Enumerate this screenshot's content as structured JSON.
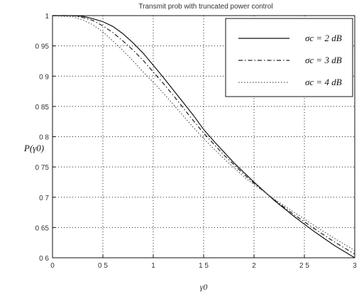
{
  "chart_data": {
    "type": "line",
    "title": "Transmit prob with truncated power control",
    "xlabel": "γ0",
    "ylabel": "P(γ0)",
    "xlim": [
      0,
      3
    ],
    "ylim": [
      0.6,
      1
    ],
    "xticks": [
      0,
      0.5,
      1,
      1.5,
      2,
      2.5,
      3
    ],
    "xtick_labels": [
      "0",
      "0 5",
      "1",
      "1 5",
      "2",
      "2 5",
      "3"
    ],
    "yticks": [
      0.6,
      0.65,
      0.7,
      0.75,
      0.8,
      0.85,
      0.9,
      0.95,
      1
    ],
    "ytick_labels": [
      "0 6",
      "0 65",
      "0 7",
      "0 75",
      "0 8",
      "0 85",
      "0 9",
      "0 95",
      "1"
    ],
    "grid": true,
    "legend_position": "top-right",
    "series": [
      {
        "name": "σc = 2 dB",
        "style": "solid",
        "color": "#111111",
        "x": [
          0,
          0.2,
          0.3,
          0.4,
          0.5,
          0.6,
          0.7,
          0.8,
          0.9,
          1.0,
          1.1,
          1.2,
          1.3,
          1.4,
          1.5,
          1.6,
          1.7,
          1.8,
          1.9,
          2.0,
          2.2,
          2.4,
          2.6,
          2.8,
          3.0
        ],
        "y": [
          1.0,
          1.0,
          0.999,
          0.995,
          0.99,
          0.982,
          0.97,
          0.955,
          0.938,
          0.918,
          0.898,
          0.877,
          0.856,
          0.835,
          0.812,
          0.793,
          0.775,
          0.757,
          0.741,
          0.725,
          0.695,
          0.668,
          0.643,
          0.62,
          0.6
        ]
      },
      {
        "name": "σc = 3 dB",
        "style": "dash-dot",
        "color": "#222222",
        "x": [
          0,
          0.2,
          0.3,
          0.4,
          0.5,
          0.6,
          0.7,
          0.8,
          0.9,
          1.0,
          1.1,
          1.2,
          1.3,
          1.4,
          1.5,
          1.6,
          1.7,
          1.8,
          1.9,
          2.0,
          2.2,
          2.4,
          2.6,
          2.8,
          3.0
        ],
        "y": [
          1.0,
          1.0,
          0.997,
          0.992,
          0.983,
          0.972,
          0.958,
          0.943,
          0.926,
          0.907,
          0.888,
          0.868,
          0.847,
          0.826,
          0.806,
          0.788,
          0.77,
          0.754,
          0.738,
          0.723,
          0.696,
          0.671,
          0.648,
          0.626,
          0.606
        ]
      },
      {
        "name": "σc = 4 dB",
        "style": "dotted",
        "color": "#555555",
        "x": [
          0,
          0.2,
          0.3,
          0.4,
          0.5,
          0.6,
          0.7,
          0.8,
          0.9,
          1.0,
          1.1,
          1.2,
          1.3,
          1.4,
          1.5,
          1.6,
          1.7,
          1.8,
          1.9,
          2.0,
          2.2,
          2.4,
          2.6,
          2.8,
          3.0
        ],
        "y": [
          1.0,
          0.998,
          0.993,
          0.985,
          0.973,
          0.958,
          0.942,
          0.925,
          0.907,
          0.89,
          0.872,
          0.853,
          0.834,
          0.815,
          0.797,
          0.78,
          0.764,
          0.749,
          0.734,
          0.721,
          0.697,
          0.675,
          0.653,
          0.632,
          0.612
        ]
      }
    ]
  }
}
